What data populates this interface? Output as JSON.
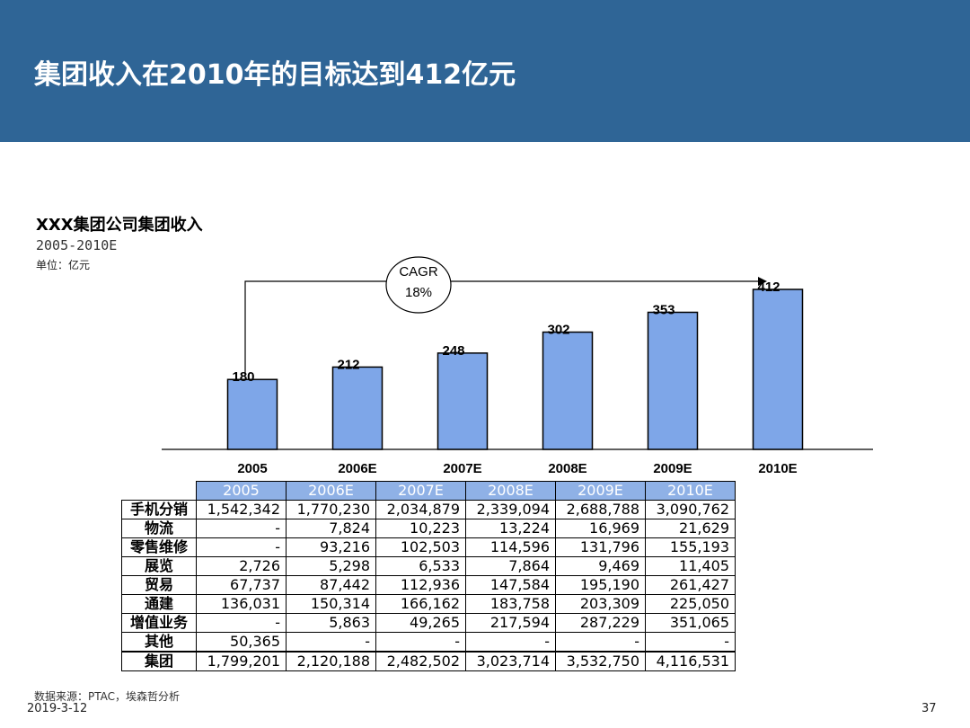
{
  "slide": {
    "title": "集团收入在2010年的目标达到412亿元",
    "source": "数据来源：PTAC，埃森哲分析",
    "date": "2019-3-12",
    "page_number": "37"
  },
  "colors": {
    "header_band": "#2f6596",
    "bar_fill": "#7ea6e8",
    "table_header_fill": "#8fb1e6"
  },
  "chart_data": {
    "type": "bar",
    "title": "XXX集团公司集团收入",
    "subtitle": "2005-2010E",
    "unit": "单位：亿元",
    "categories": [
      "2005",
      "2006E",
      "2007E",
      "2008E",
      "2009E",
      "2010E"
    ],
    "values": [
      180,
      212,
      248,
      302,
      353,
      412
    ],
    "data_labels": [
      "180",
      "212",
      "248",
      "302",
      "353",
      "412"
    ],
    "ylim": [
      0,
      412
    ],
    "annotation": {
      "label_line1": "CAGR",
      "label_line2": "18%",
      "from": "2005",
      "to": "2010E"
    }
  },
  "table": {
    "headers": [
      "2005",
      "2006E",
      "2007E",
      "2008E",
      "2009E",
      "2010E"
    ],
    "rows": [
      {
        "label": "手机分销",
        "values": [
          "1,542,342",
          "1,770,230",
          "2,034,879",
          "2,339,094",
          "2,688,788",
          "3,090,762"
        ]
      },
      {
        "label": "物流",
        "values": [
          "-",
          "7,824",
          "10,223",
          "13,224",
          "16,969",
          "21,629"
        ]
      },
      {
        "label": "零售维修",
        "values": [
          "-",
          "93,216",
          "102,503",
          "114,596",
          "131,796",
          "155,193"
        ]
      },
      {
        "label": "展览",
        "values": [
          "2,726",
          "5,298",
          "6,533",
          "7,864",
          "9,469",
          "11,405"
        ]
      },
      {
        "label": "贸易",
        "values": [
          "67,737",
          "87,442",
          "112,936",
          "147,584",
          "195,190",
          "261,427"
        ]
      },
      {
        "label": "通建",
        "values": [
          "136,031",
          "150,314",
          "166,162",
          "183,758",
          "203,309",
          "225,050"
        ]
      },
      {
        "label": "增值业务",
        "values": [
          "-",
          "5,863",
          "49,265",
          "217,594",
          "287,229",
          "351,065"
        ]
      },
      {
        "label": "其他",
        "values": [
          "50,365",
          "-",
          "-",
          "-",
          "-",
          "-"
        ]
      },
      {
        "label": "集团",
        "values": [
          "1,799,201",
          "2,120,188",
          "2,482,502",
          "3,023,714",
          "3,532,750",
          "4,116,531"
        ]
      }
    ]
  }
}
